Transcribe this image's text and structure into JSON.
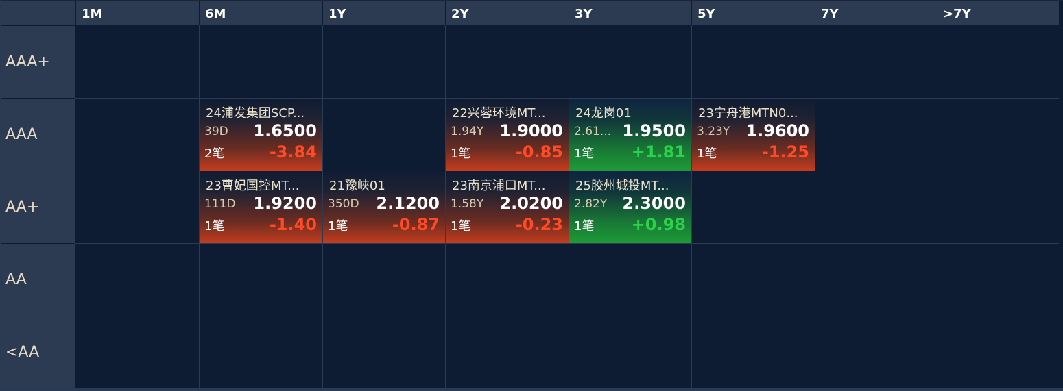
{
  "columns": [
    "1M",
    "6M",
    "1Y",
    "2Y",
    "3Y",
    "5Y",
    "7Y",
    ">7Y"
  ],
  "rows": [
    "AAA+",
    "AAA",
    "AA+",
    "AA",
    "<AA"
  ],
  "colors": {
    "background": "#0e1c33",
    "header": "#2c3b52",
    "negative_change": "#ff4a26",
    "positive_change": "#2bd14a"
  },
  "tiles": [
    {
      "name": "24浦发集团SCP...",
      "term": "39D",
      "rate": "1.6500",
      "count": "2笔",
      "change": "-3.84",
      "tone": "red"
    },
    {
      "name": "22兴蓉环境MT...",
      "term": "1.94Y",
      "rate": "1.9000",
      "count": "1笔",
      "change": "-0.85",
      "tone": "red"
    },
    {
      "name": "24龙岗01",
      "term": "2.61...",
      "rate": "1.9500",
      "count": "1笔",
      "change": "+1.81",
      "tone": "green"
    },
    {
      "name": "23宁舟港MTN0...",
      "term": "3.23Y",
      "rate": "1.9600",
      "count": "1笔",
      "change": "-1.25",
      "tone": "red"
    },
    {
      "name": "23曹妃国控MT...",
      "term": "111D",
      "rate": "1.9200",
      "count": "1笔",
      "change": "-1.40",
      "tone": "red"
    },
    {
      "name": "21豫峡01",
      "term": "350D",
      "rate": "2.1200",
      "count": "1笔",
      "change": "-0.87",
      "tone": "red"
    },
    {
      "name": "23南京浦口MT...",
      "term": "1.58Y",
      "rate": "2.0200",
      "count": "1笔",
      "change": "-0.23",
      "tone": "red"
    },
    {
      "name": "25胶州城投MT...",
      "term": "2.82Y",
      "rate": "2.3000",
      "count": "1笔",
      "change": "+0.98",
      "tone": "green"
    }
  ]
}
